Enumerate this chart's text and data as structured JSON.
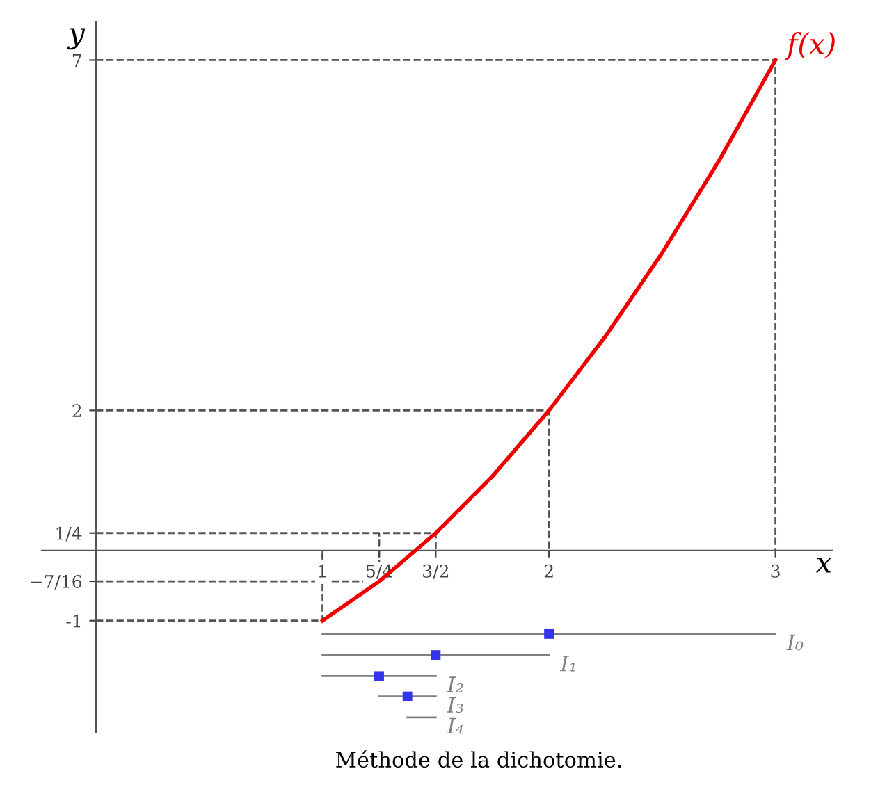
{
  "chart_data": {
    "type": "line",
    "xlabel": "x",
    "ylabel": "y",
    "xlim": [
      -0.24,
      3.25
    ],
    "ylim": [
      -2.6,
      7.55
    ],
    "xticks": [
      1,
      {
        "value": 1.25,
        "label": "5/4"
      },
      {
        "value": 1.5,
        "label": "3/2"
      },
      2,
      3
    ],
    "yticks": [
      -1,
      {
        "value": -0.4375,
        "label": "−7/16"
      },
      {
        "value": 0.25,
        "label": "1/4"
      },
      2,
      7
    ],
    "grid": false,
    "series": [
      {
        "name": "f(x)",
        "color": "#ee0000",
        "x": [
          1,
          1.25,
          1.5,
          1.75,
          2,
          2.25,
          2.5,
          2.75,
          3
        ],
        "values": [
          -1,
          -0.44,
          0.25,
          1.06,
          2,
          3.06,
          4.25,
          5.56,
          7
        ],
        "marker": "none"
      },
      {
        "color": "#555555",
        "x": [
          0,
          1,
          1
        ],
        "values": [
          -1,
          -1,
          0
        ],
        "line_style": "dashed",
        "marker": "none"
      },
      {
        "color": "#555555",
        "x": [
          0,
          1.25,
          1.25
        ],
        "values": [
          -0.4375,
          -0.4375,
          0.25
        ],
        "line_style": "dashed",
        "marker": "none"
      },
      {
        "color": "#555555",
        "x": [
          0,
          1.5,
          1.5
        ],
        "values": [
          0.25,
          0.25,
          0
        ],
        "line_style": "dashed",
        "marker": "none"
      },
      {
        "color": "#555555",
        "x": [
          0,
          2,
          2
        ],
        "values": [
          2,
          2,
          0
        ],
        "line_style": "dashed",
        "marker": "none"
      },
      {
        "color": "#555555",
        "x": [
          0,
          3,
          3
        ],
        "values": [
          7,
          7,
          0
        ],
        "line_style": "dashed",
        "marker": "none"
      },
      {
        "name": "I₀",
        "color": "#808080",
        "x": [
          1,
          3
        ],
        "values": [
          -1.19,
          -1.19
        ],
        "marker": "none"
      },
      {
        "name": "I₁",
        "color": "#808080",
        "x": [
          1,
          2
        ],
        "values": [
          -1.49,
          -1.49
        ],
        "marker": "none"
      },
      {
        "name": "I₂",
        "color": "#808080",
        "x": [
          1,
          1.5
        ],
        "values": [
          -1.79,
          -1.79
        ],
        "marker": "none"
      },
      {
        "name": "I₃",
        "color": "#808080",
        "x": [
          1.25,
          1.5
        ],
        "values": [
          -2.08,
          -2.08
        ],
        "marker": "none"
      },
      {
        "name": "I₄",
        "color": "#808080",
        "x": [
          1.375,
          1.5
        ],
        "values": [
          -2.38,
          -2.38
        ],
        "marker": "none"
      },
      {
        "type": "scatter",
        "color": "#3333ee",
        "x": [
          2,
          1.5,
          1.25,
          1.375
        ],
        "values": [
          -1.19,
          -1.49,
          -1.79,
          -2.08
        ],
        "marker": "square"
      }
    ],
    "annotations": [
      "Méthode de la dichotomie."
    ]
  }
}
